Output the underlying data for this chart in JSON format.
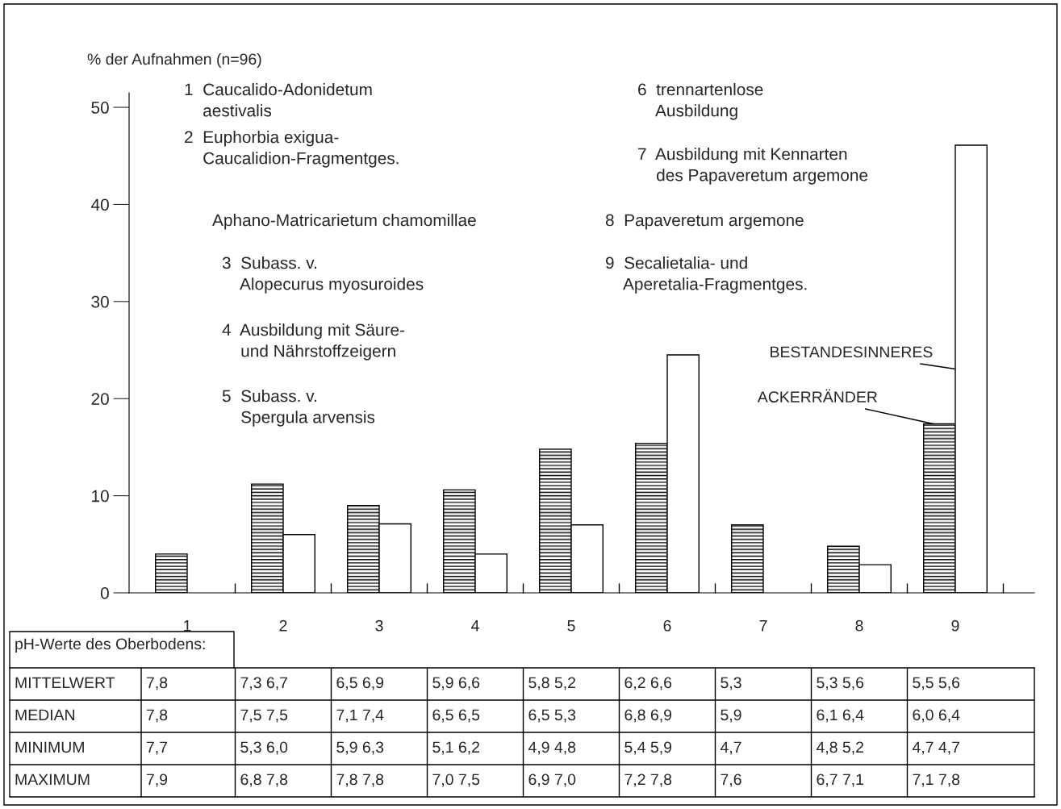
{
  "chart_data": {
    "type": "bar",
    "ylabel": "% der Aufnahmen (n=96)",
    "categories": [
      "1",
      "2",
      "3",
      "4",
      "5",
      "6",
      "7",
      "8",
      "9"
    ],
    "series": [
      {
        "name": "ACKERRÄNDER",
        "color": "#000000",
        "values": [
          4.0,
          11.2,
          9.0,
          10.6,
          14.8,
          15.4,
          7.0,
          4.8,
          17.4
        ]
      },
      {
        "name": "BESTANDESINNERES",
        "color": "#ffffff",
        "values": [
          null,
          6.0,
          7.1,
          4.0,
          7.0,
          24.5,
          null,
          2.9,
          46.1
        ]
      }
    ],
    "ylim": [
      0,
      51.5
    ],
    "yticks": [
      0,
      10,
      20,
      30,
      40,
      50
    ],
    "grid": false,
    "legend": false,
    "annotations": [
      "1  Caucalido-Adonidetum\n    aestivalis",
      "2  Euphorbia exigua-\n    Caucalidion-Fragmentges.",
      "Aphano-Matricarietum chamomillae",
      "3  Subass. v.\n    Alopecurus myosuroides",
      "4  Ausbildung mit Säure-\n    und Nährstoffzeigern",
      "5  Subass. v.\n    Spergula arvensis",
      "6  trennartenlose\n    Ausbildung",
      "7  Ausbildung mit Kennarten\n    des Papaveretum argemone",
      "8  Papaveretum argemone",
      "9  Secalietalia- und\n    Aperetalia-Fragmentges.",
      "pH-Werte des Oberbodens:",
      "MITTELWERT",
      "7,8",
      "7,3 6,7",
      "6,5 6,9",
      "5,9 6,6",
      "5,8 5,2",
      "6,2 6,6",
      "5,3",
      "5,3 5,6",
      "5,5 5,6",
      "MEDIAN",
      "7,8",
      "7,5 7,5",
      "7,1 7,4",
      "6,5 6,5",
      "6,5 5,3",
      "6,8 6,9",
      "5,9",
      "6,1 6,4",
      "6,0 6,4",
      "MINIMUM",
      "7,7",
      "5,3 6,0",
      "5,9 6,3",
      "5,1 6,2",
      "4,9 4,8",
      "5,4 5,9",
      "4,7",
      "4,8 5,2",
      "4,7 4,7",
      "MAXIMUM",
      "7,9",
      "6,8 7,8",
      "7,8 7,8",
      "7,0 7,5",
      "6,9 7,0",
      "7,2 7,8",
      "7,6",
      "6,7 7,1",
      "7,1 7,8"
    ]
  }
}
